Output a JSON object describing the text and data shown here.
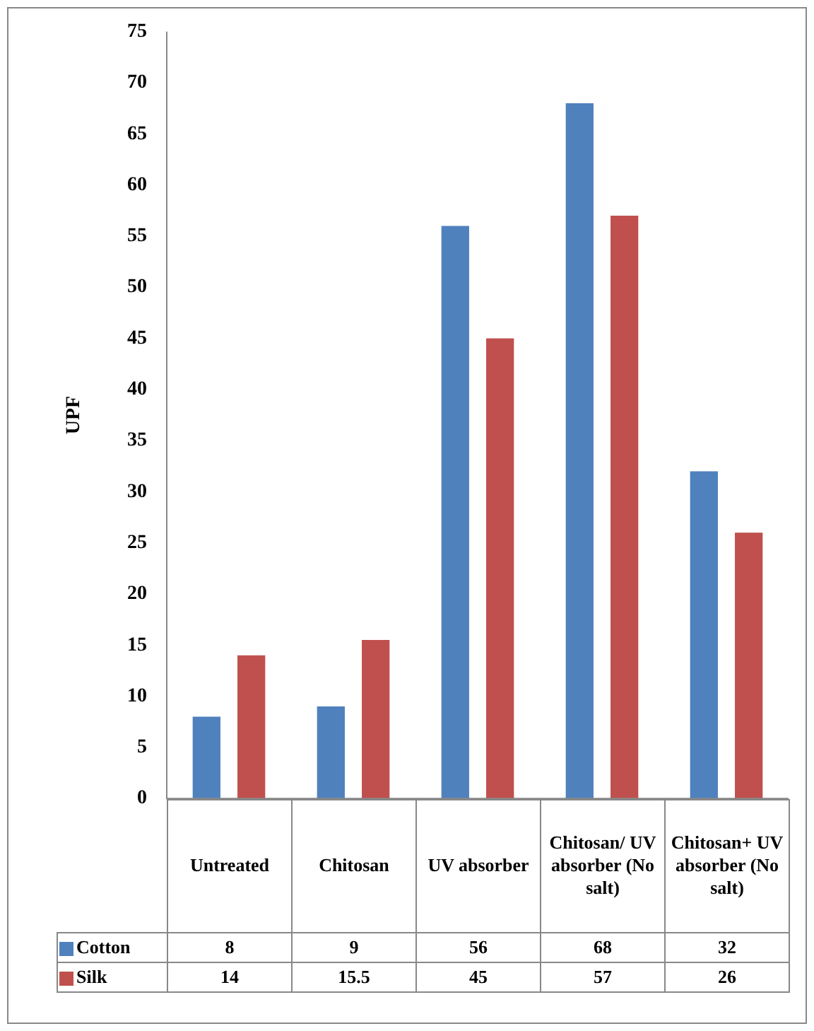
{
  "chart_data": {
    "type": "bar",
    "ylabel": "UPF",
    "categories": [
      "Untreated",
      "Chitosan",
      "UV absorber",
      "Chitosan/ UV absorber (No salt)",
      "Chitosan+ UV absorber (No salt)"
    ],
    "series": [
      {
        "name": "Cotton",
        "color": "#4f81bd",
        "values": [
          8,
          9,
          56,
          68,
          32
        ]
      },
      {
        "name": "Silk",
        "color": "#c0504d",
        "values": [
          14,
          15.5,
          45,
          57,
          26
        ]
      }
    ],
    "ylim": [
      0,
      75
    ],
    "yticks": [
      0,
      5,
      10,
      15,
      20,
      25,
      30,
      35,
      40,
      45,
      50,
      55,
      60,
      65,
      70,
      75
    ],
    "grid": false,
    "legend": "bottom",
    "data_labels": true
  }
}
